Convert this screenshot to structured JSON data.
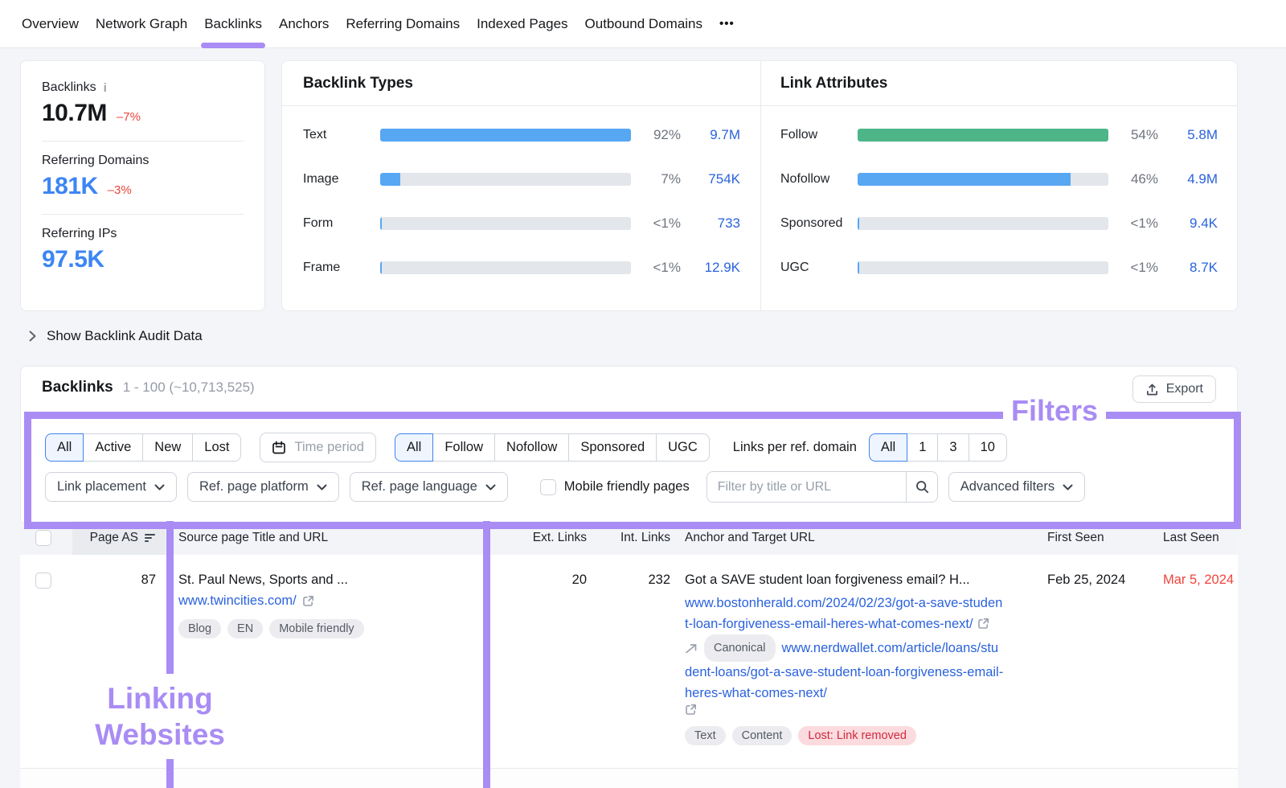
{
  "palette": {
    "purple": "#a98cf4",
    "blue_link": "#2a62dd",
    "blue_metric": "#3d85f4",
    "red": "#e8453c",
    "red_date": "#f0443c",
    "seg_blue": "#3f83f0"
  },
  "nav": {
    "items": [
      {
        "label": "Overview"
      },
      {
        "label": "Network Graph"
      },
      {
        "label": "Backlinks",
        "active": true
      },
      {
        "label": "Anchors"
      },
      {
        "label": "Referring Domains"
      },
      {
        "label": "Indexed Pages"
      },
      {
        "label": "Outbound Domains"
      }
    ],
    "more_label": "•••"
  },
  "stats": {
    "backlinks": {
      "label": "Backlinks",
      "value": "10.7M",
      "delta": "–7%"
    },
    "referring_domains": {
      "label": "Referring Domains",
      "value": "181K",
      "delta": "–3%"
    },
    "referring_ips": {
      "label": "Referring IPs",
      "value": "97.5K"
    }
  },
  "panels": {
    "backlink_types": {
      "title": "Backlink Types",
      "rows": [
        {
          "label": "Text",
          "pct": "92%",
          "count": "9.7M",
          "fill": 100,
          "color": "#57a7f3"
        },
        {
          "label": "Image",
          "pct": "7%",
          "count": "754K",
          "fill": 8,
          "color": "#57a7f3"
        },
        {
          "label": "Form",
          "pct": "<1%",
          "count": "733",
          "fill": 0.8,
          "color": "#57a7f3"
        },
        {
          "label": "Frame",
          "pct": "<1%",
          "count": "12.9K",
          "fill": 0.8,
          "color": "#57a7f3"
        }
      ]
    },
    "link_attributes": {
      "title": "Link Attributes",
      "rows": [
        {
          "label": "Follow",
          "pct": "54%",
          "count": "5.8M",
          "fill": 100,
          "color": "#4db588"
        },
        {
          "label": "Nofollow",
          "pct": "46%",
          "count": "4.9M",
          "fill": 85,
          "color": "#57a7f3"
        },
        {
          "label": "Sponsored",
          "pct": "<1%",
          "count": "9.4K",
          "fill": 0.8,
          "color": "#57a7f3"
        },
        {
          "label": "UGC",
          "pct": "<1%",
          "count": "8.7K",
          "fill": 0.8,
          "color": "#57a7f3"
        }
      ]
    }
  },
  "audit_toggle": {
    "label": "Show Backlink Audit Data"
  },
  "backlinks_section": {
    "title": "Backlinks",
    "range": "1 - 100 (~10,713,525)",
    "export_label": "Export"
  },
  "filters": {
    "status": {
      "options": [
        "All",
        "Active",
        "New",
        "Lost"
      ],
      "selected": "All"
    },
    "time_period_label": "Time period",
    "follow_type": {
      "options": [
        "All",
        "Follow",
        "Nofollow",
        "Sponsored",
        "UGC"
      ],
      "selected": "All"
    },
    "links_per_domain": {
      "label": "Links per ref. domain",
      "options": [
        "All",
        "1",
        "3",
        "10"
      ],
      "selected": "All"
    },
    "link_placement_label": "Link placement",
    "ref_page_platform_label": "Ref. page platform",
    "ref_page_language_label": "Ref. page language",
    "mobile_friendly_label": "Mobile friendly pages",
    "search_placeholder": "Filter by title or URL",
    "advanced_label": "Advanced filters"
  },
  "annotations": {
    "filters": "Filters",
    "linking": "Linking Websites"
  },
  "table": {
    "headers": {
      "page_as": "Page AS",
      "source": "Source page Title and URL",
      "ext": "Ext. Links",
      "int": "Int. Links",
      "anchor": "Anchor and Target URL",
      "first_seen": "First Seen",
      "last_seen": "Last Seen"
    },
    "row": {
      "page_as": "87",
      "source_title": "St. Paul News, Sports and ...",
      "source_url": "www.twincities.com/",
      "source_tags": [
        "Blog",
        "EN",
        "Mobile friendly"
      ],
      "ext_links": "20",
      "int_links": "232",
      "anchor_text": "Got a SAVE student loan forgiveness email? H...",
      "target_url": "www.bostonherald.com/2024/02/23/got-a-save-student-loan-forgiveness-email-heres-what-comes-next/",
      "canonical_label": "Canonical",
      "canonical_url": "www.nerdwallet.com/article/loans/student-loans/got-a-save-student-loan-forgiveness-email-heres-what-comes-next/",
      "link_tags": [
        "Text",
        "Content"
      ],
      "status_tag": "Lost: Link removed",
      "first_seen": "Feb 25, 2024",
      "last_seen": "Mar 5, 2024"
    }
  }
}
